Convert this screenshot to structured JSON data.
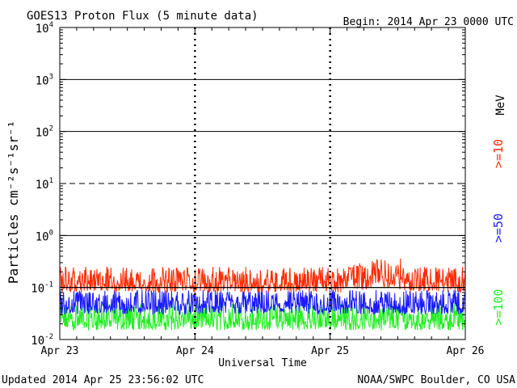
{
  "header": {
    "title": "GOES13 Proton Flux (5 minute data)",
    "begin": "Begin: 2014 Apr 23 0000 UTC"
  },
  "footer": {
    "updated": "Updated 2014 Apr 25 23:56:02 UTC",
    "credit": "NOAA/SWPC Boulder, CO USA"
  },
  "axes": {
    "xlabel": "Universal Time",
    "ylabel": "Particles cm⁻²s⁻¹sr⁻¹",
    "mev_label": "MeV"
  },
  "colors": {
    "ge10": "#ff2a00",
    "ge50": "#1a1aff",
    "ge100": "#22ee22",
    "grid": "#000000"
  },
  "chart_data": {
    "type": "line",
    "title": "GOES13 Proton Flux (5 minute data)",
    "xlabel": "Universal Time",
    "ylabel": "Particles cm⁻²s⁻¹sr⁻¹",
    "y_scale": "log",
    "ylim": [
      0.01,
      10000
    ],
    "x_tick_labels": [
      "Apr 23",
      "Apr 24",
      "Apr 25",
      "Apr 26"
    ],
    "y_ticks": [
      {
        "base": "10",
        "exp": "-2"
      },
      {
        "base": "10",
        "exp": "-1"
      },
      {
        "base": "10",
        "exp": "0"
      },
      {
        "base": "10",
        "exp": "1"
      },
      {
        "base": "10",
        "exp": "2"
      },
      {
        "base": "10",
        "exp": "3"
      },
      {
        "base": "10",
        "exp": "4"
      }
    ],
    "threshold_line": 0.1,
    "dashed_line": 10,
    "series": [
      {
        "name": ">=10",
        "color": "#ff2a00",
        "typical_range": [
          0.08,
          0.25
        ],
        "peak": 0.4
      },
      {
        "name": ">=50",
        "color": "#1a1aff",
        "typical_range": [
          0.03,
          0.09
        ]
      },
      {
        "name": ">=100",
        "color": "#22ee22",
        "typical_range": [
          0.015,
          0.05
        ]
      }
    ]
  }
}
